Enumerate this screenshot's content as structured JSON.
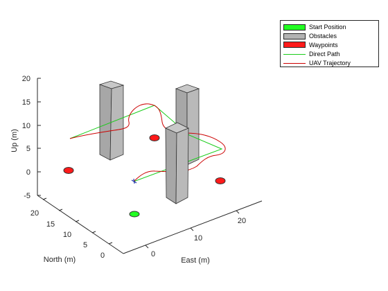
{
  "chart_data": {
    "type": "3d-scene",
    "xlabel": "East (m)",
    "ylabel": "North (m)",
    "zlabel": "Up (m)",
    "x_ticks": [
      0,
      10,
      20
    ],
    "y_ticks": [
      0,
      5,
      10,
      15,
      20
    ],
    "z_ticks": [
      -5,
      0,
      5,
      10,
      15,
      20
    ],
    "xlim": [
      -5,
      27
    ],
    "ylim": [
      -2,
      22
    ],
    "zlim": [
      -5,
      20
    ],
    "grid": false,
    "legend_position": "top-right",
    "legend": [
      {
        "label": "Start Position",
        "kind": "patch",
        "color": "#22ff22"
      },
      {
        "label": "Obstacles",
        "kind": "patch",
        "color": "#b3b3b3"
      },
      {
        "label": "Waypoints",
        "kind": "patch",
        "color": "#ff1a1a"
      },
      {
        "label": "Direct Path",
        "kind": "line",
        "color": "#19cc19"
      },
      {
        "label": "UAV Trajectory",
        "kind": "line",
        "color": "#cc0000"
      }
    ],
    "start_position": {
      "x": 0,
      "y": 0,
      "z": 0
    },
    "waypoints": [
      {
        "x": -5,
        "y": 22,
        "z": 0
      },
      {
        "x": 20,
        "y": 20,
        "z": 5
      },
      {
        "x": 20,
        "y": 0,
        "z": 0
      },
      {
        "x": 10,
        "y": 10,
        "z": 0
      }
    ],
    "obstacles": [
      {
        "center": [
          0,
          16
        ],
        "size": [
          3,
          3
        ],
        "base": 0,
        "top": 17
      },
      {
        "center": [
          14,
          20
        ],
        "size": [
          3,
          3
        ],
        "base": 0,
        "top": 17
      },
      {
        "center": [
          10,
          5
        ],
        "size": [
          3,
          3
        ],
        "base": 0,
        "top": 17
      }
    ],
    "direct_path": [
      {
        "x": 0,
        "y": 20,
        "z": 7
      },
      {
        "x": 10,
        "y": 25,
        "z": 13
      },
      {
        "x": 25,
        "y": 17,
        "z": 7
      },
      {
        "x": 10,
        "y": 10,
        "z": 0
      },
      {
        "x": 3,
        "y": 7,
        "z": 0
      }
    ],
    "uav_trajectory": [
      {
        "x": 0,
        "y": 20,
        "z": 7
      },
      {
        "x": 7,
        "y": 22,
        "z": 8.5
      },
      {
        "x": 10,
        "y": 24,
        "z": 10
      },
      {
        "x": 12,
        "y": 26,
        "z": 13.5
      },
      {
        "x": 18,
        "y": 26,
        "z": 11
      },
      {
        "x": 21,
        "y": 23,
        "z": 7.5
      },
      {
        "x": 25,
        "y": 18,
        "z": 7
      },
      {
        "x": 22,
        "y": 14,
        "z": 4
      },
      {
        "x": 13,
        "y": 11,
        "z": 0.5
      },
      {
        "x": 6,
        "y": 8,
        "z": 0
      },
      {
        "x": 3,
        "y": 7,
        "z": 0
      }
    ]
  }
}
